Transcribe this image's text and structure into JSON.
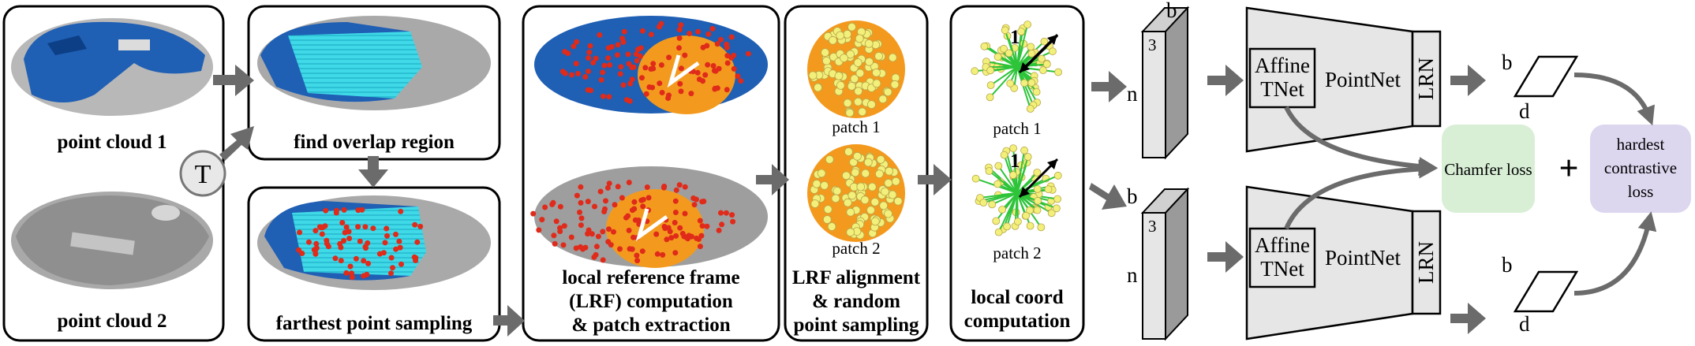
{
  "labels": {
    "pc1": "point cloud 1",
    "pc2": "point cloud 2",
    "transform": "T",
    "overlap": "find overlap region",
    "fps": "farthest point sampling",
    "lrf1": "local reference frame",
    "lrf2": "(LRF) computation",
    "lrf3": "& patch extraction",
    "align1": "LRF alignment",
    "align2": "& random",
    "align3": "point sampling",
    "patch1": "patch 1",
    "patch2": "patch 2",
    "coord1": "local coord",
    "coord2": "computation",
    "radius": "1",
    "dim_b": "b",
    "dim_3": "3",
    "dim_n": "n",
    "dim_d": "d",
    "affine1": "Affine",
    "affine2": "TNet",
    "pointnet": "PointNet",
    "lrn": "LRN",
    "chamfer": "Chamfer loss",
    "plus": "+",
    "hard1": "hardest",
    "hard2": "contrastive",
    "hard3": "loss"
  },
  "colors": {
    "scan_blue": "#1f5fb4",
    "scan_gray": "#9a9a9a",
    "overlap_cyan": "#3fd9e8",
    "sample_red": "#e02a1a",
    "patch_orange": "#f39a1e",
    "point_yellow": "#f2f07a",
    "edge_green": "#2ec43a",
    "arrow_gray": "#6b6b6b",
    "chamfer_bg": "#d8efd6",
    "contrastive_bg": "#ddd6ef"
  }
}
